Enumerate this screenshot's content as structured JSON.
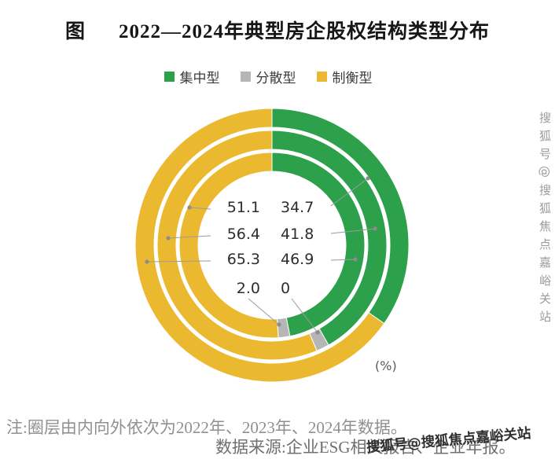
{
  "title": {
    "prefix": "图",
    "text": "2022—2024年典型房企股权结构类型分布"
  },
  "legend": {
    "items": [
      {
        "label": "集中型",
        "color": "#2CA04B"
      },
      {
        "label": "分散型",
        "color": "#B6B6B6"
      },
      {
        "label": "制衡型",
        "color": "#EBB930"
      }
    ]
  },
  "chart_data": {
    "type": "donut",
    "title": "2022—2024年典型房企股权结构类型分布",
    "categories": [
      "集中型",
      "分散型",
      "制衡型"
    ],
    "colors": [
      "#2CA04B",
      "#B6B6B6",
      "#EBB930"
    ],
    "rings": [
      {
        "year": "2022",
        "position": "inner",
        "values": [
          46.9,
          2.0,
          51.1
        ]
      },
      {
        "year": "2023",
        "position": "middle",
        "values": [
          41.8,
          1.8,
          56.4
        ]
      },
      {
        "year": "2024",
        "position": "outer",
        "values": [
          34.7,
          0,
          65.3
        ]
      }
    ],
    "unit_label": "(%)",
    "center_labels": {
      "rows": [
        {
          "left": "51.1",
          "right": "34.7"
        },
        {
          "left": "56.4",
          "right": "41.8"
        },
        {
          "left": "65.3",
          "right": "46.9"
        },
        {
          "left": "2.0",
          "right": "0"
        }
      ]
    }
  },
  "notes": {
    "line1": "注:圈层由内向外依次为2022年、2023年、2024年数据。",
    "line2": "数据来源:企业ESG相关报告、企业年报。"
  },
  "watermarks": {
    "vertical": "搜狐号@搜狐焦点嘉峪关站",
    "bottom": "搜狐号@搜狐焦点嘉峪关站"
  }
}
